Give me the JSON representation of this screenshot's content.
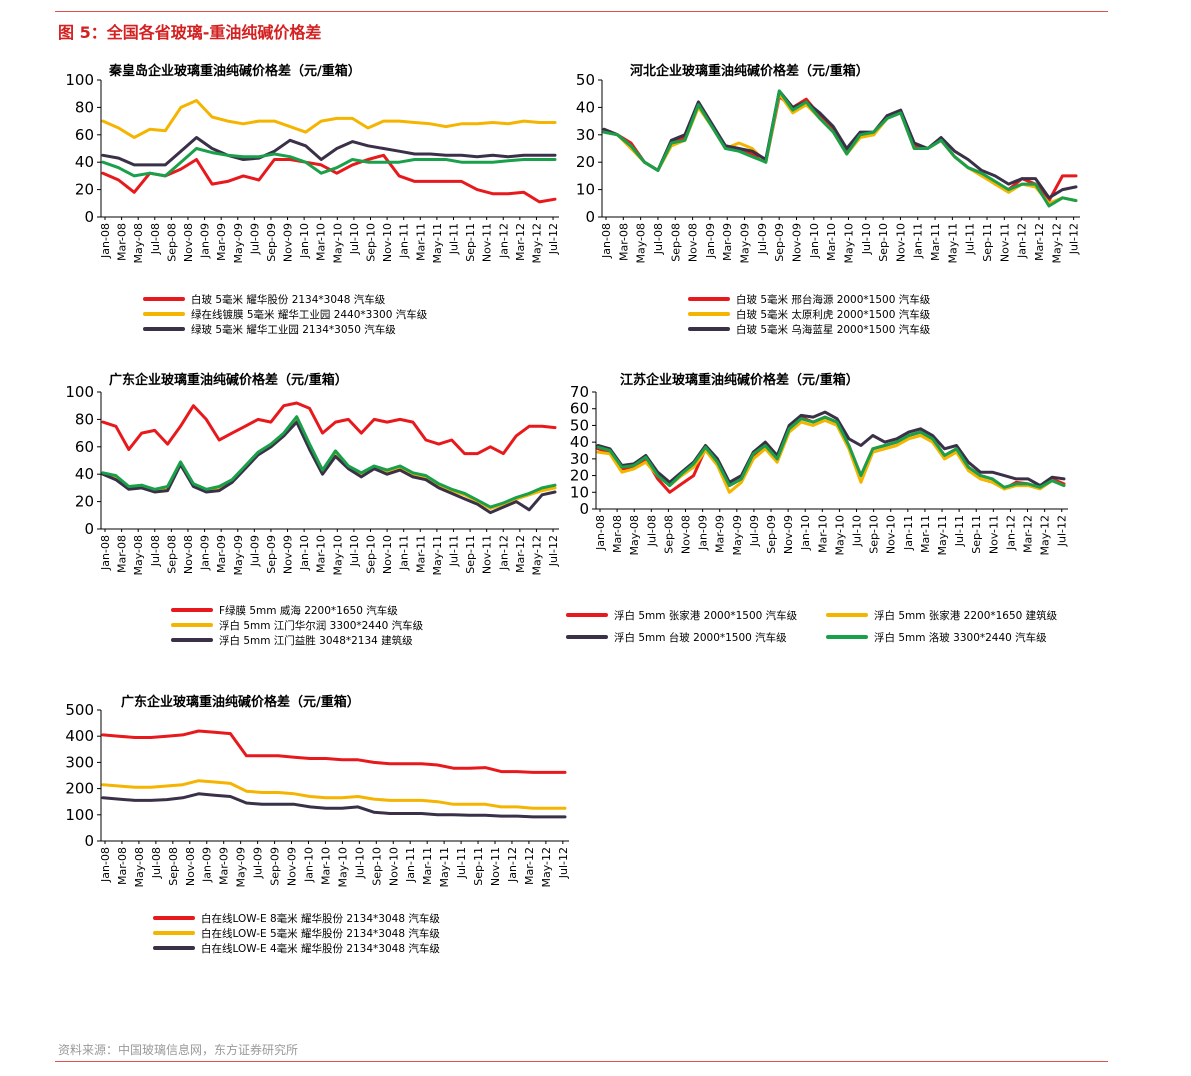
{
  "page": {
    "figure_title": "图 5：全国各省玻璃-重油纯碱价格差",
    "source": "资料来源：中国玻璃信息网，东方证券研究所"
  },
  "chart_data": [
    {
      "type": "line",
      "title": "秦皇岛企业玻璃重油纯碱价格差（元/重箱）",
      "ylim": [
        0,
        100
      ],
      "yticks": [
        0,
        20,
        40,
        60,
        80,
        100
      ],
      "xticks": [
        "Jan-08",
        "Mar-08",
        "May-08",
        "Jul-08",
        "Sep-08",
        "Nov-08",
        "Jan-09",
        "Mar-09",
        "May-09",
        "Jul-09",
        "Sep-09",
        "Nov-09",
        "Jan-10",
        "Mar-10",
        "May-10",
        "Jul-10",
        "Sep-10",
        "Nov-10",
        "Jan-11",
        "Mar-11",
        "May-11",
        "Jul-11",
        "Sep-11",
        "Nov-11",
        "Jan-12",
        "Mar-12",
        "May-12",
        "Jul-12"
      ],
      "legend_columns": 1,
      "series": [
        {
          "name": "白玻  5毫米  耀华股份  2134*3048  汽车级",
          "color": "#e8191c",
          "values": [
            32,
            27,
            18,
            32,
            30,
            35,
            42,
            24,
            26,
            30,
            27,
            42,
            42,
            40,
            38,
            32,
            38,
            42,
            45,
            30,
            26,
            26,
            26,
            26,
            20,
            17,
            17,
            18,
            11,
            13
          ]
        },
        {
          "name": "绿在线镀膜  5毫米  耀华工业园  2440*3300  汽车级",
          "color": "#f5b400",
          "values": [
            70,
            65,
            58,
            64,
            63,
            80,
            85,
            73,
            70,
            68,
            70,
            70,
            66,
            62,
            70,
            72,
            72,
            65,
            70,
            70,
            69,
            68,
            66,
            68,
            68,
            69,
            68,
            70,
            69,
            69
          ]
        },
        {
          "name": "绿玻  5毫米  耀华工业园  2134*3050  汽车级",
          "color": "#3a3048",
          "values": [
            45,
            43,
            38,
            38,
            38,
            48,
            58,
            50,
            45,
            42,
            43,
            48,
            56,
            52,
            42,
            50,
            55,
            52,
            50,
            48,
            46,
            46,
            45,
            45,
            44,
            45,
            44,
            45,
            45,
            45
          ]
        },
        {
          "name": "",
          "color": "#1aa04a",
          "values": [
            40,
            36,
            30,
            32,
            30,
            40,
            50,
            47,
            45,
            44,
            44,
            46,
            44,
            40,
            32,
            36,
            42,
            40,
            40,
            40,
            42,
            42,
            42,
            40,
            40,
            40,
            41,
            42,
            42,
            42
          ]
        }
      ]
    },
    {
      "type": "line",
      "title": "河北企业玻璃重油纯碱价格差（元/重箱）",
      "ylim": [
        0,
        50
      ],
      "yticks": [
        0,
        10,
        20,
        30,
        40,
        50
      ],
      "xticks": [
        "Jan-08",
        "Mar-08",
        "May-08",
        "Jul-08",
        "Sep-08",
        "Nov-08",
        "Jan-09",
        "Mar-09",
        "May-09",
        "Jul-09",
        "Sep-09",
        "Nov-09",
        "Jan-10",
        "Mar-10",
        "May-10",
        "Jul-10",
        "Sep-10",
        "Nov-10",
        "Jan-11",
        "Mar-11",
        "May-11",
        "Jul-11",
        "Sep-11",
        "Nov-11",
        "Jan-12",
        "Mar-12",
        "May-12",
        "Jul-12"
      ],
      "legend_columns": 1,
      "series": [
        {
          "name": "白玻  5毫米  邢台海源  2000*1500  汽车级",
          "color": "#e8191c",
          "values": [
            32,
            30,
            27,
            20,
            17,
            27,
            29,
            41,
            33,
            26,
            25,
            23,
            20,
            44,
            40,
            43,
            37,
            32,
            24,
            30,
            30,
            37,
            38,
            26,
            25,
            28,
            22,
            18,
            16,
            12,
            10,
            14,
            12,
            6,
            15,
            15
          ]
        },
        {
          "name": "白玻  5毫米  太原利虎  2000*1500  汽车级",
          "color": "#f5b400",
          "values": [
            31,
            30,
            25,
            20,
            17,
            26,
            28,
            40,
            33,
            25,
            27,
            25,
            20,
            45,
            38,
            41,
            36,
            31,
            23,
            29,
            30,
            36,
            38,
            25,
            25,
            28,
            22,
            18,
            15,
            12,
            9,
            12,
            11,
            5,
            7,
            6
          ]
        },
        {
          "name": "白玻  5毫米  乌海蓝星  2000*1500  汽车级",
          "color": "#3a3048",
          "values": [
            32,
            30,
            26,
            20,
            17,
            28,
            30,
            42,
            34,
            26,
            25,
            24,
            21,
            46,
            40,
            42,
            38,
            33,
            25,
            31,
            31,
            37,
            39,
            27,
            25,
            29,
            24,
            21,
            17,
            15,
            12,
            14,
            14,
            7,
            10,
            11
          ]
        },
        {
          "name": "",
          "color": "#1aa04a",
          "values": [
            31,
            30,
            26,
            20,
            17,
            27,
            28,
            41,
            33,
            25,
            24,
            22,
            20,
            46,
            39,
            42,
            36,
            31,
            23,
            30,
            31,
            36,
            38,
            25,
            25,
            28,
            22,
            18,
            16,
            13,
            10,
            12,
            12,
            4,
            7,
            6
          ]
        }
      ]
    },
    {
      "type": "line",
      "title": "广东企业玻璃重油纯碱价格差（元/重箱）",
      "ylim": [
        0,
        100
      ],
      "yticks": [
        0,
        20,
        40,
        60,
        80,
        100
      ],
      "xticks": [
        "Jan-08",
        "Mar-08",
        "May-08",
        "Jul-08",
        "Sep-08",
        "Nov-08",
        "Jan-09",
        "Mar-09",
        "May-09",
        "Jul-09",
        "Sep-09",
        "Nov-09",
        "Jan-10",
        "Mar-10",
        "May-10",
        "Jul-10",
        "Sep-10",
        "Nov-10",
        "Jan-11",
        "Mar-11",
        "May-11",
        "Jul-11",
        "Sep-11",
        "Nov-11",
        "Jan-12",
        "Mar-12",
        "May-12",
        "Jul-12"
      ],
      "legend_columns": 1,
      "series": [
        {
          "name": "F绿膜 5mm 威海 2200*1650 汽车级",
          "color": "#e8191c",
          "values": [
            78,
            75,
            58,
            70,
            72,
            62,
            75,
            90,
            80,
            65,
            70,
            75,
            80,
            78,
            90,
            92,
            88,
            70,
            78,
            80,
            70,
            80,
            78,
            80,
            78,
            65,
            62,
            65,
            55,
            55,
            60,
            55,
            68,
            75,
            75,
            74
          ]
        },
        {
          "name": "浮白 5mm 江门华尔润 3300*2440 汽车级",
          "color": "#f5b400",
          "values": [
            40,
            38,
            30,
            32,
            28,
            30,
            48,
            32,
            28,
            30,
            35,
            45,
            55,
            60,
            68,
            80,
            60,
            42,
            55,
            45,
            40,
            45,
            42,
            45,
            40,
            38,
            32,
            28,
            25,
            20,
            15,
            18,
            22,
            25,
            28,
            30
          ]
        },
        {
          "name": "浮白 5mm 江门益胜 3048*2134 建筑级",
          "color": "#3a3048",
          "values": [
            40,
            36,
            29,
            30,
            27,
            28,
            47,
            31,
            27,
            28,
            34,
            44,
            54,
            60,
            68,
            78,
            58,
            40,
            53,
            44,
            38,
            44,
            40,
            43,
            38,
            36,
            30,
            26,
            22,
            18,
            12,
            16,
            20,
            14,
            25,
            27
          ]
        },
        {
          "name": "",
          "color": "#1aa04a",
          "values": [
            41,
            39,
            31,
            32,
            29,
            31,
            49,
            33,
            29,
            31,
            36,
            46,
            56,
            62,
            70,
            82,
            62,
            43,
            57,
            46,
            41,
            46,
            43,
            46,
            41,
            39,
            33,
            29,
            26,
            21,
            16,
            19,
            23,
            26,
            30,
            32
          ]
        }
      ]
    },
    {
      "type": "line",
      "title": "江苏企业玻璃重油纯碱价格差（元/重箱）",
      "ylim": [
        0,
        70
      ],
      "yticks": [
        0,
        10,
        20,
        30,
        40,
        50,
        60,
        70
      ],
      "xticks": [
        "Jan-08",
        "Mar-08",
        "May-08",
        "Jul-08",
        "Sep-08",
        "Nov-08",
        "Jan-09",
        "Mar-09",
        "May-09",
        "Jul-09",
        "Sep-09",
        "Nov-09",
        "Jan-10",
        "Mar-10",
        "May-10",
        "Jul-10",
        "Sep-10",
        "Nov-10",
        "Jan-11",
        "Mar-11",
        "May-11",
        "Jul-11",
        "Sep-11",
        "Nov-11",
        "Jan-12",
        "Mar-12",
        "May-12",
        "Jul-12"
      ],
      "legend_columns": 2,
      "series": [
        {
          "name": "浮白 5mm 张家港 2000*1500 汽车级",
          "color": "#e8191c",
          "values": [
            36,
            34,
            24,
            25,
            30,
            18,
            10,
            15,
            20,
            36,
            28,
            14,
            18,
            32,
            38,
            30,
            48,
            55,
            52,
            55,
            52,
            38,
            20,
            36,
            38,
            40,
            44,
            46,
            42,
            32,
            36,
            25,
            20,
            18,
            12,
            16,
            15,
            13,
            18,
            15
          ]
        },
        {
          "name": "浮白 5mm 张家港 2200*1650 建筑级",
          "color": "#f5b400",
          "values": [
            34,
            33,
            22,
            24,
            28,
            20,
            14,
            20,
            25,
            35,
            26,
            10,
            16,
            30,
            36,
            28,
            46,
            52,
            50,
            53,
            50,
            36,
            16,
            34,
            36,
            38,
            42,
            44,
            40,
            30,
            34,
            23,
            18,
            16,
            12,
            14,
            14,
            12,
            17,
            14
          ]
        },
        {
          "name": "浮白 5mm 台玻 2000*1500 汽车级",
          "color": "#3a3048",
          "values": [
            38,
            36,
            26,
            27,
            32,
            22,
            16,
            22,
            28,
            38,
            30,
            16,
            20,
            34,
            40,
            32,
            50,
            56,
            55,
            58,
            54,
            42,
            38,
            44,
            40,
            42,
            46,
            48,
            44,
            36,
            38,
            28,
            22,
            22,
            20,
            18,
            18,
            14,
            19,
            18
          ]
        },
        {
          "name": "浮白 5mm 洛玻 3300*2440 汽车级",
          "color": "#1aa04a",
          "values": [
            37,
            35,
            25,
            26,
            31,
            20,
            14,
            21,
            27,
            37,
            28,
            14,
            18,
            33,
            38,
            30,
            48,
            54,
            52,
            55,
            52,
            38,
            20,
            36,
            38,
            40,
            44,
            46,
            42,
            32,
            36,
            25,
            20,
            18,
            13,
            15,
            15,
            13,
            17,
            14
          ]
        }
      ]
    },
    {
      "type": "line",
      "title": "广东企业玻璃重油纯碱价格差（元/重箱）",
      "ylim": [
        0,
        500
      ],
      "yticks": [
        0,
        100,
        200,
        300,
        400,
        500
      ],
      "xticks": [
        "Jan-08",
        "Mar-08",
        "May-08",
        "Jul-08",
        "Sep-08",
        "Nov-08",
        "Jan-09",
        "Mar-09",
        "May-09",
        "Jul-09",
        "Sep-09",
        "Nov-09",
        "Jan-10",
        "Mar-10",
        "May-10",
        "Jul-10",
        "Sep-10",
        "Nov-10",
        "Jan-11",
        "Mar-11",
        "May-11",
        "Jul-11",
        "Sep-11",
        "Nov-11",
        "Jan-12",
        "Mar-12",
        "May-12",
        "Jul-12"
      ],
      "legend_columns": 1,
      "series": [
        {
          "name": "白在线LOW-E  8毫米  耀华股份  2134*3048  汽车级",
          "color": "#e8191c",
          "values": [
            405,
            400,
            395,
            395,
            400,
            405,
            420,
            415,
            410,
            325,
            325,
            325,
            320,
            315,
            315,
            310,
            310,
            300,
            295,
            295,
            295,
            290,
            278,
            278,
            280,
            265,
            265,
            262,
            262,
            262
          ]
        },
        {
          "name": "白在线LOW-E  5毫米  耀华股份  2134*3048  汽车级",
          "color": "#f5b400",
          "values": [
            215,
            210,
            205,
            205,
            210,
            215,
            230,
            225,
            220,
            190,
            185,
            185,
            180,
            170,
            165,
            165,
            170,
            160,
            155,
            155,
            155,
            150,
            140,
            140,
            140,
            130,
            130,
            125,
            125,
            125
          ]
        },
        {
          "name": "白在线LOW-E  4毫米  耀华股份  2134*3048  汽车级",
          "color": "#3a3048",
          "values": [
            165,
            160,
            155,
            155,
            158,
            165,
            180,
            175,
            170,
            145,
            140,
            140,
            140,
            130,
            125,
            125,
            130,
            110,
            105,
            105,
            105,
            100,
            100,
            98,
            98,
            95,
            95,
            92,
            92,
            92
          ]
        }
      ]
    }
  ]
}
